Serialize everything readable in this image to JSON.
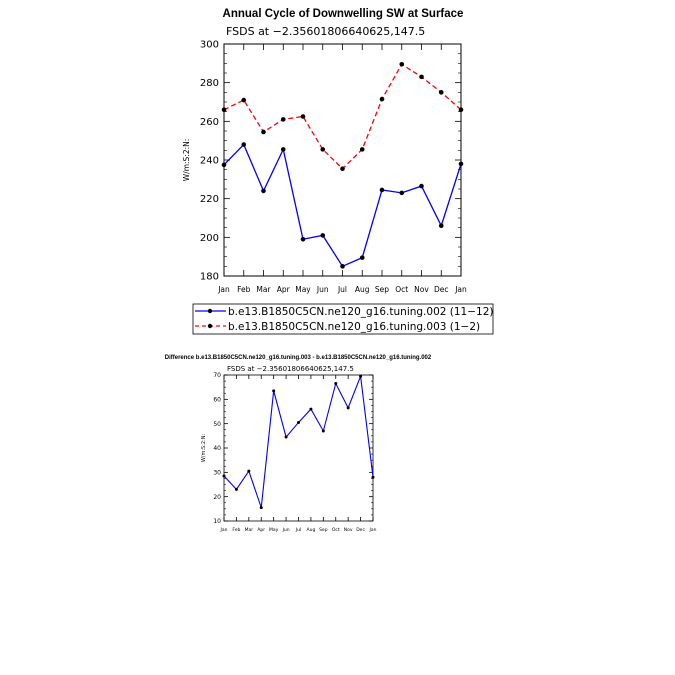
{
  "chart_data": [
    {
      "type": "line",
      "title": "Annual Cycle of Downwelling SW at Surface",
      "subtitle": "FSDS at −2.35601806640625,147.5",
      "ylabel": "W/m:S:2:N:",
      "xlabel": "",
      "categories": [
        "Jan",
        "Feb",
        "Mar",
        "Apr",
        "May",
        "Jun",
        "Jul",
        "Aug",
        "Sep",
        "Oct",
        "Nov",
        "Dec",
        "Jan"
      ],
      "ylim": [
        180,
        300
      ],
      "yticks": [
        180,
        200,
        220,
        240,
        260,
        280,
        300
      ],
      "grid": false,
      "legend_position": "below",
      "series": [
        {
          "name": "b.e13.B1850C5CN.ne120_g16.tuning.002 (11−12)",
          "color": "#0000ff",
          "dash": "solid",
          "values": [
            237.5,
            248,
            224,
            245.5,
            199,
            201,
            185,
            189.5,
            224.5,
            223,
            226.5,
            206,
            238
          ]
        },
        {
          "name": "b.e13.B1850C5CN.ne120_g16.tuning.003 (1−2)",
          "color": "#ff0000",
          "dash": "dashed",
          "values": [
            266,
            271,
            254.5,
            261,
            262.5,
            245.5,
            235.5,
            245.5,
            271.5,
            289.5,
            283,
            275,
            266
          ]
        }
      ]
    },
    {
      "type": "line",
      "title": "Difference b.e13.B1850C5CN.ne120_g16.tuning.003 - b.e13.B1850C5CN.ne120_g16.tuning.002",
      "subtitle": "FSDS at −2.35601806640625,147.5",
      "ylabel": "W/m:S:2:N:",
      "xlabel": "",
      "categories": [
        "Jan",
        "Feb",
        "Mar",
        "Apr",
        "May",
        "Jun",
        "Jul",
        "Aug",
        "Sep",
        "Oct",
        "Nov",
        "Dec",
        "Jan"
      ],
      "ylim": [
        10,
        70
      ],
      "yticks": [
        10,
        20,
        30,
        40,
        50,
        60,
        70
      ],
      "grid": false,
      "series": [
        {
          "color": "#0000ff",
          "dash": "solid",
          "values": [
            28.5,
            23,
            30.5,
            15.5,
            63.5,
            44.5,
            50.5,
            56,
            47,
            66.5,
            56.5,
            69.5,
            28
          ]
        }
      ]
    }
  ]
}
